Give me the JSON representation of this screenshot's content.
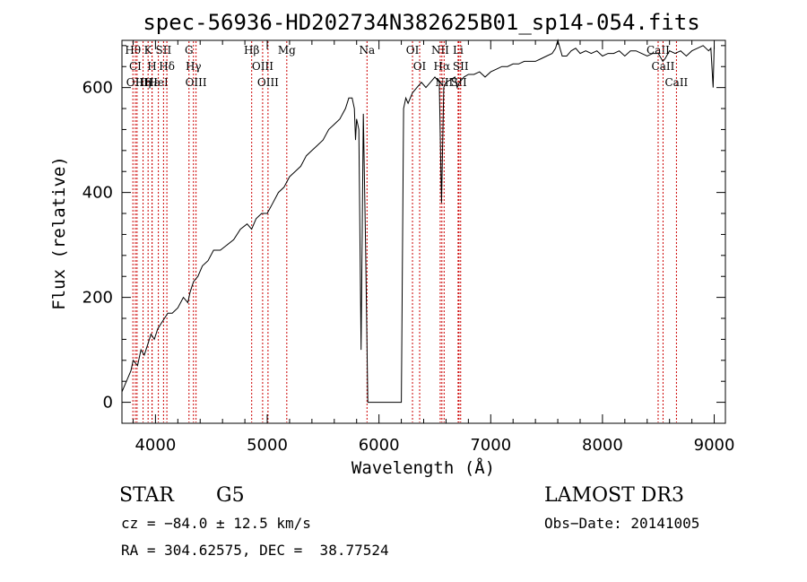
{
  "chart_data": {
    "type": "line",
    "title": "spec-56936-HD202734N382625B01_sp14-054.fits",
    "xlabel": "Wavelength (Å)",
    "ylabel": "Flux (relative)",
    "xlim": [
      3700,
      9100
    ],
    "ylim": [
      -40,
      690
    ],
    "xticks": [
      4000,
      5000,
      6000,
      7000,
      8000,
      9000
    ],
    "yticks": [
      0,
      200,
      400,
      600
    ],
    "series": [
      {
        "x": [
          3700,
          3740,
          3780,
          3800,
          3840,
          3870,
          3900,
          3930,
          3960,
          3990,
          4020,
          4050,
          4080,
          4110,
          4150,
          4200,
          4250,
          4290,
          4310,
          4340,
          4380,
          4420,
          4470,
          4520,
          4580,
          4640,
          4700,
          4760,
          4820,
          4860,
          4900,
          4950,
          5000,
          5050,
          5100,
          5150,
          5200,
          5250,
          5300,
          5350,
          5400,
          5450,
          5500,
          5550,
          5600,
          5650,
          5700,
          5730,
          5760,
          5780,
          5790,
          5800,
          5820,
          5840,
          5860,
          5880,
          5900,
          5950,
          6000,
          6100,
          6200,
          6220,
          6240,
          6260,
          6300,
          6340,
          6380,
          6420,
          6460,
          6500,
          6540,
          6560,
          6580,
          6600,
          6640,
          6680,
          6700,
          6720,
          6760,
          6800,
          6850,
          6900,
          6950,
          7000,
          7050,
          7100,
          7150,
          7200,
          7250,
          7300,
          7350,
          7400,
          7450,
          7500,
          7550,
          7580,
          7600,
          7620,
          7640,
          7680,
          7720,
          7760,
          7800,
          7850,
          7900,
          7950,
          8000,
          8050,
          8100,
          8150,
          8200,
          8250,
          8300,
          8350,
          8400,
          8450,
          8500,
          8540,
          8560,
          8600,
          8650,
          8700,
          8750,
          8800,
          8850,
          8900,
          8950,
          8970,
          8990,
          9000
        ],
        "y": [
          20,
          40,
          60,
          80,
          70,
          100,
          90,
          110,
          130,
          120,
          140,
          150,
          160,
          170,
          170,
          180,
          200,
          190,
          210,
          230,
          240,
          260,
          270,
          290,
          290,
          300,
          310,
          330,
          340,
          330,
          350,
          360,
          360,
          380,
          400,
          410,
          430,
          440,
          450,
          470,
          480,
          490,
          500,
          520,
          530,
          540,
          560,
          580,
          580,
          560,
          500,
          540,
          520,
          100,
          550,
          300,
          0,
          0,
          0,
          0,
          0,
          560,
          580,
          570,
          590,
          600,
          610,
          600,
          610,
          620,
          610,
          380,
          600,
          610,
          615,
          620,
          600,
          610,
          620,
          625,
          625,
          630,
          620,
          630,
          635,
          640,
          640,
          645,
          645,
          650,
          650,
          650,
          655,
          660,
          665,
          675,
          690,
          675,
          660,
          660,
          670,
          675,
          665,
          670,
          665,
          670,
          660,
          665,
          665,
          670,
          660,
          670,
          670,
          665,
          660,
          665,
          665,
          650,
          655,
          670,
          665,
          670,
          660,
          670,
          675,
          680,
          670,
          675,
          600,
          680
        ]
      }
    ],
    "line_markers": [
      {
        "wl": 3798,
        "label": "Hθ"
      },
      {
        "wl": 3820,
        "label": "CI"
      },
      {
        "wl": 3835,
        "label": "OIII"
      },
      {
        "wl": 3889,
        "label": "Hη"
      },
      {
        "wl": 3934,
        "label": "K"
      },
      {
        "wl": 3969,
        "label": "H"
      },
      {
        "wl": 3970,
        "label": "Hε"
      },
      {
        "wl": 4026,
        "label": "HeI"
      },
      {
        "wl": 4072,
        "label": "SII"
      },
      {
        "wl": 4102,
        "label": "Hδ"
      },
      {
        "wl": 4300,
        "label": "G"
      },
      {
        "wl": 4340,
        "label": "Hγ"
      },
      {
        "wl": 4363,
        "label": "OIII"
      },
      {
        "wl": 4861,
        "label": "Hβ"
      },
      {
        "wl": 4959,
        "label": "OIII"
      },
      {
        "wl": 5007,
        "label": "OIII"
      },
      {
        "wl": 5175,
        "label": "Mg"
      },
      {
        "wl": 5893,
        "label": "Na"
      },
      {
        "wl": 6300,
        "label": "OI"
      },
      {
        "wl": 6364,
        "label": "OI"
      },
      {
        "wl": 6548,
        "label": "NII"
      },
      {
        "wl": 6563,
        "label": "Hα"
      },
      {
        "wl": 6583,
        "label": "NII"
      },
      {
        "wl": 6708,
        "label": "Li"
      },
      {
        "wl": 6716,
        "label": "SII"
      },
      {
        "wl": 6731,
        "label": "SII"
      },
      {
        "wl": 8498,
        "label": "CaII"
      },
      {
        "wl": 8542,
        "label": "CaII"
      },
      {
        "wl": 8662,
        "label": "CaII"
      }
    ]
  },
  "info": {
    "obj_class": "STAR",
    "subclass": "G5",
    "survey": "LAMOST DR3",
    "cz": "cz = −84.0 ± 12.5 km/s",
    "obs_date": "Obs−Date: 20141005",
    "coords": "RA = 304.62575, DEC =  38.77524"
  }
}
